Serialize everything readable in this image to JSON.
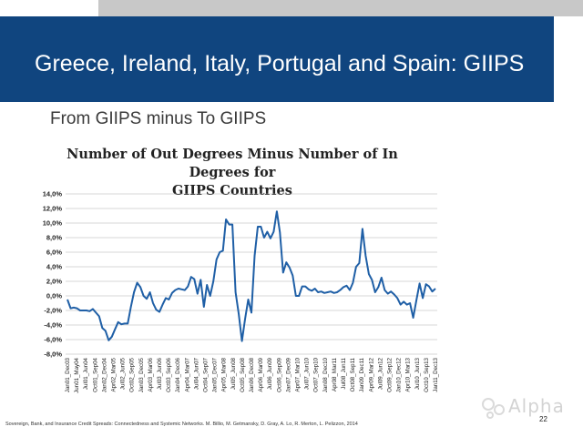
{
  "slide": {
    "title": "Greece, Ireland, Italy, Portugal and Spain: GIIPS",
    "subtitle": "From GIIPS minus To GIIPS",
    "footer": "Sovereign, Bank, and Insurance Credit Spreads: Connectedness and Systemic Networks. M. Billio, M. Getmansky, D. Gray, A. Lo, R. Merton, L. Pelizzon, 2014",
    "page_number": "22",
    "watermark": "Alpha"
  },
  "colors": {
    "banner": "#10457f",
    "series": "#1f5fa6",
    "grid": "#b0b0b0"
  },
  "chart_data": {
    "type": "line",
    "title_line1": "Number of Out Degrees Minus Number of In Degrees for",
    "title_line2": "GIIPS Countries",
    "ylim": [
      -8,
      14
    ],
    "yticks": [
      14,
      12,
      10,
      8,
      6,
      4,
      2,
      0,
      -2,
      -4,
      -6,
      -8
    ],
    "ytick_labels": [
      "14,0%",
      "12,0%",
      "10,0%",
      "8,0%",
      "6,0%",
      "4,0%",
      "2,0%",
      "0,0%",
      "-2,0%",
      "-4,0%",
      "-6,0%",
      "-8,0%"
    ],
    "grid": "horizontal",
    "xtick_labels": [
      "Jan01_Dec03",
      "Jun01_May04",
      "Jul01_Jun04",
      "Oct01_Sep04",
      "Jan02_Dec04",
      "Apr02_Mar05",
      "Jul02_Jun05",
      "Oct02_Sep05",
      "Jan03_Dec05",
      "Apr03_Mar06",
      "Jul03_Jun06",
      "Oct03_Sep06",
      "Jan04_Dec06",
      "Apr04_Mar07",
      "Jul04_Jun07",
      "Oct04_Sep07",
      "Jan05_Dec07",
      "Apr05_Mar08",
      "Jul05_Jun08",
      "Oct05_Sep08",
      "Jan06_Dec08",
      "Apr06_Mar09",
      "Jul06_Jun09",
      "Oct06_Sep09",
      "Jan07_Dec09",
      "Apr07_Mar10",
      "Jul07_Jun10",
      "Oct07_Sep10",
      "Jan08_Dec10",
      "Apr08_Mar11",
      "Jul08_Jun11",
      "Oct08_Sep11",
      "Jan09_Dec11",
      "Apr09_Mar12",
      "Jul09_Jun12",
      "Oct09_Sep12",
      "Jan10_Dec12",
      "Apr10_Mar13",
      "Jul10_Jun13",
      "Oct10_Sep13",
      "Jan11_Dec13"
    ],
    "series": [
      {
        "values": [
          -0.5,
          -1.7,
          -1.6,
          -1.7,
          -2.0,
          -2.0,
          -2.0,
          -2.1,
          -1.8,
          -2.3,
          -2.8,
          -4.4,
          -4.8,
          -6.1,
          -5.6,
          -4.6,
          -3.6,
          -3.9,
          -3.8,
          -3.8,
          -1.5,
          0.5,
          1.8,
          1.2,
          0.0,
          -0.4,
          0.5,
          -1.0,
          -1.9,
          -2.2,
          -1.2,
          -0.3,
          -0.5,
          0.4,
          0.8,
          1.0,
          0.9,
          0.8,
          1.3,
          2.6,
          2.3,
          0.3,
          2.2,
          -1.5,
          1.5,
          0.0,
          2.0,
          5.0,
          6.0,
          6.2,
          10.5,
          9.8,
          9.8,
          0.5,
          -2.5,
          -6.2,
          -3.2,
          -0.5,
          -2.3,
          5.5,
          9.5,
          9.5,
          8.0,
          8.8,
          7.9,
          8.8,
          11.6,
          8.7,
          3.2,
          4.6,
          3.9,
          2.8,
          0.0,
          0.0,
          1.3,
          1.3,
          0.9,
          0.7,
          1.0,
          0.5,
          0.6,
          0.4,
          0.5,
          0.6,
          0.4,
          0.5,
          0.8,
          1.2,
          1.4,
          0.8,
          1.8,
          4.0,
          4.5,
          9.2,
          5.5,
          3.0,
          2.2,
          0.5,
          1.2,
          2.5,
          0.8,
          0.3,
          0.6,
          0.2,
          -0.3,
          -1.2,
          -0.8,
          -1.2,
          -1.0,
          -3.0,
          -0.6,
          1.7,
          -0.3,
          1.6,
          1.3,
          0.6,
          1.0
        ]
      }
    ]
  }
}
